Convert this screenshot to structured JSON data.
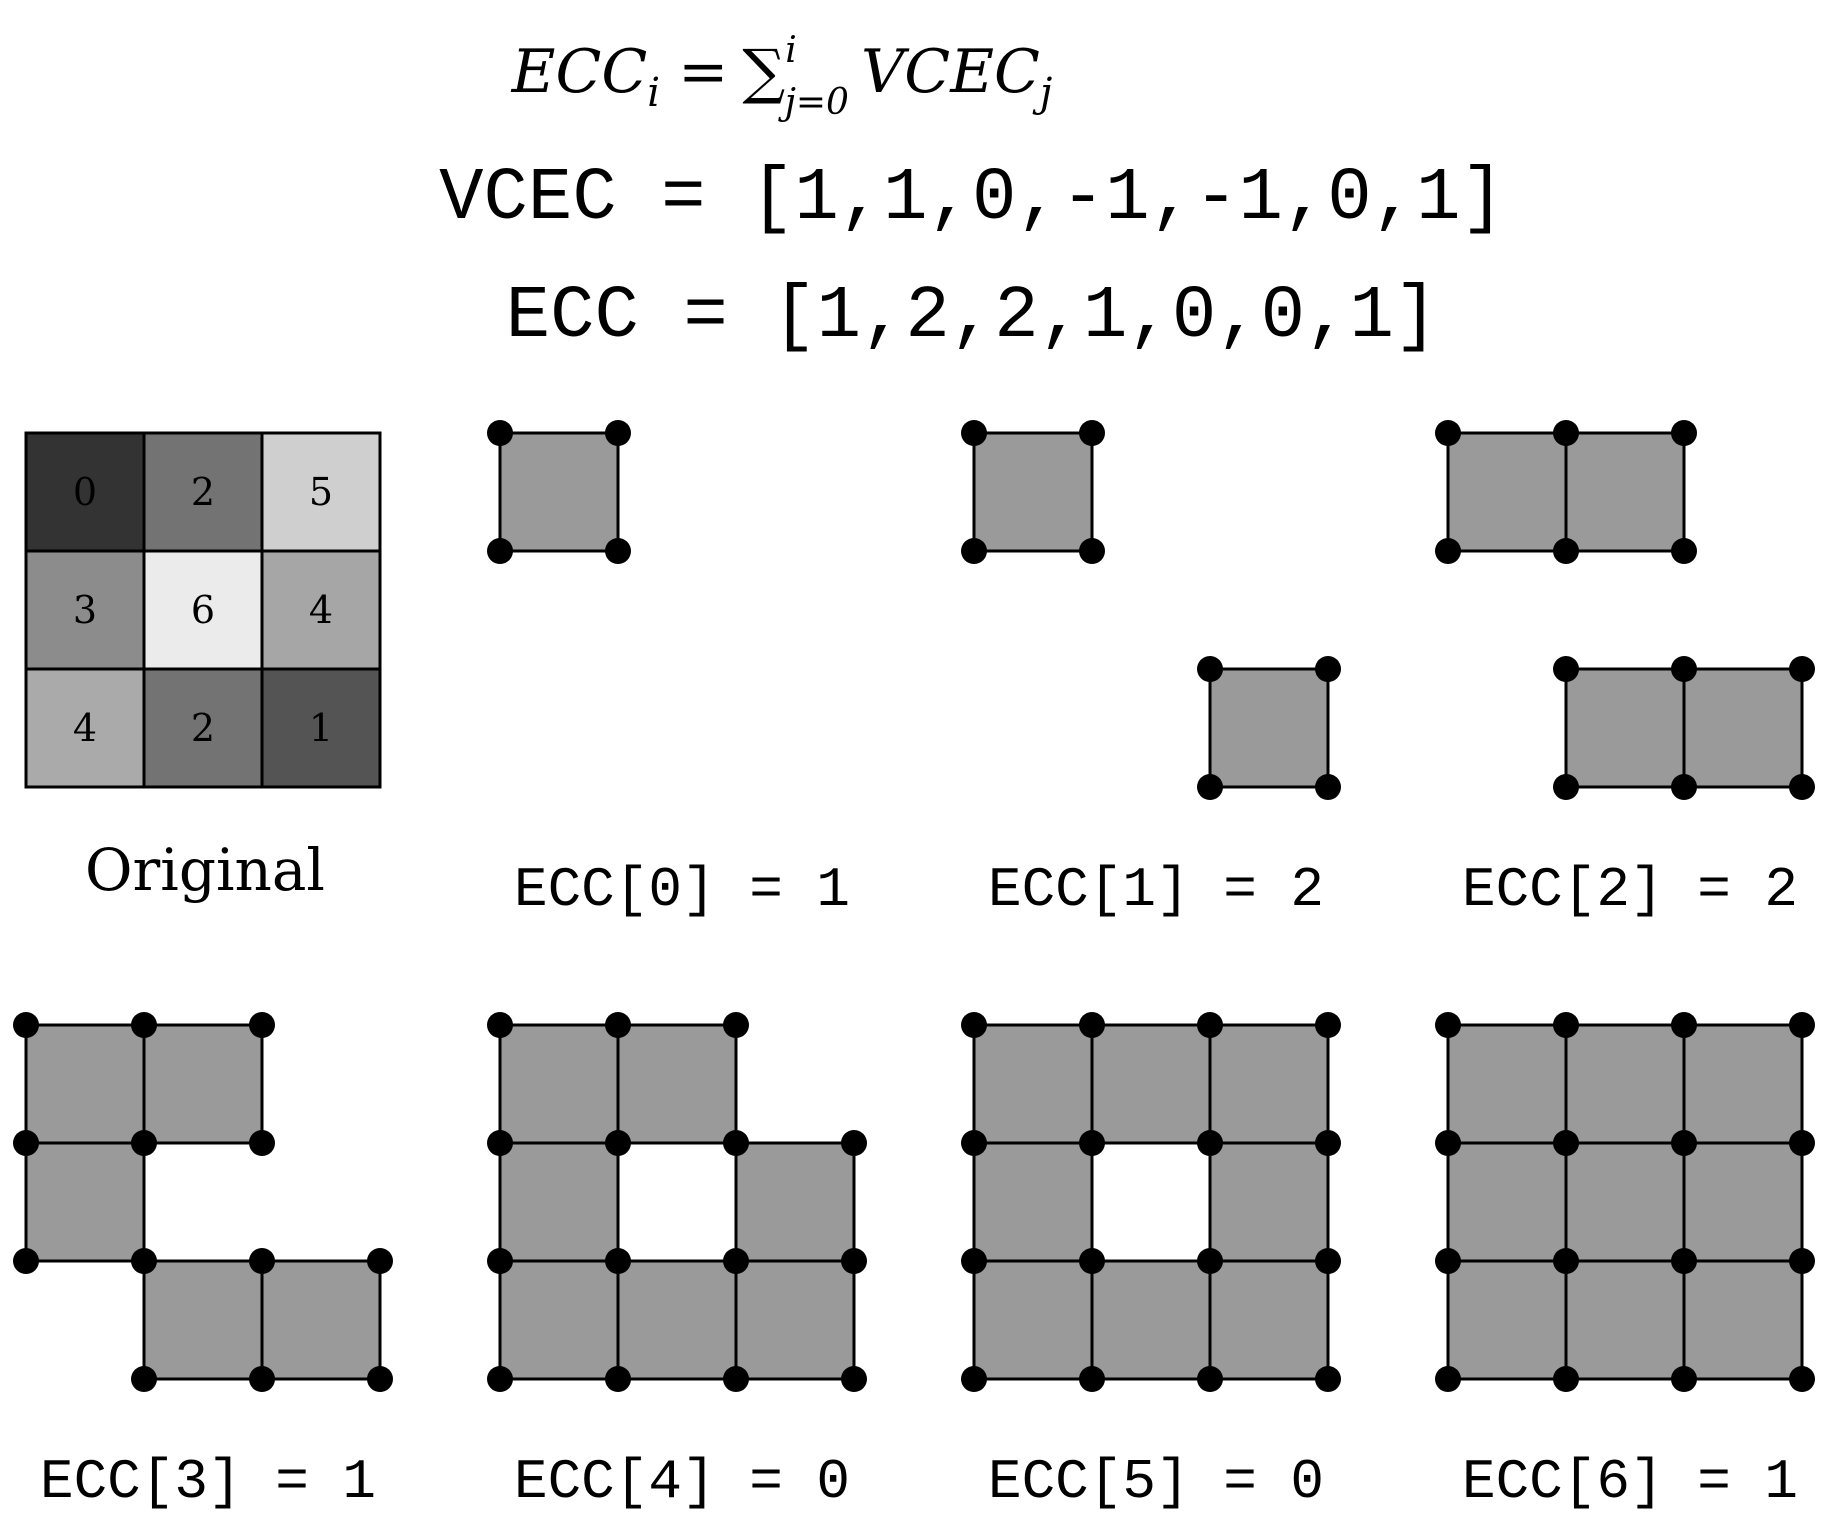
{
  "formula": {
    "lhs": "ECC",
    "lhs_sub": "i",
    "equals": "=",
    "sum_symbol": "∑",
    "sum_upper": "i",
    "sum_lower": "j=0",
    "rhs": "VCEC",
    "rhs_sub": "j"
  },
  "vcec_line": "VCEC = [1,1,0,-1,-1,0,1]",
  "ecc_line": "ECC = [1,2,2,1,0,0,1]",
  "colors": {
    "filled_cell": "#9a9a9a",
    "stroke": "#000000",
    "vertex": "#000000"
  },
  "original": {
    "label": "Original",
    "values": [
      [
        0,
        2,
        5
      ],
      [
        3,
        6,
        4
      ],
      [
        4,
        2,
        1
      ]
    ],
    "cell_colors": [
      [
        "#333333",
        "#737373",
        "#cfcfcf"
      ],
      [
        "#8c8c8c",
        "#ebebeb",
        "#a6a6a6"
      ],
      [
        "#aaaaaa",
        "#737373",
        "#545454"
      ]
    ]
  },
  "panels": [
    {
      "label": "ECC[0] = 1",
      "cells": [
        [
          0,
          0
        ]
      ]
    },
    {
      "label": "ECC[1] = 2",
      "cells": [
        [
          0,
          0
        ],
        [
          2,
          2
        ]
      ]
    },
    {
      "label": "ECC[2] = 2",
      "cells": [
        [
          0,
          0
        ],
        [
          0,
          1
        ],
        [
          2,
          1
        ],
        [
          2,
          2
        ]
      ]
    },
    {
      "label": "ECC[3] = 1",
      "cells": [
        [
          0,
          0
        ],
        [
          0,
          1
        ],
        [
          1,
          0
        ],
        [
          2,
          1
        ],
        [
          2,
          2
        ]
      ]
    },
    {
      "label": "ECC[4] = 0",
      "cells": [
        [
          0,
          0
        ],
        [
          0,
          1
        ],
        [
          1,
          0
        ],
        [
          1,
          2
        ],
        [
          2,
          0
        ],
        [
          2,
          1
        ],
        [
          2,
          2
        ]
      ]
    },
    {
      "label": "ECC[5] = 0",
      "cells": [
        [
          0,
          0
        ],
        [
          0,
          1
        ],
        [
          0,
          2
        ],
        [
          1,
          0
        ],
        [
          1,
          2
        ],
        [
          2,
          0
        ],
        [
          2,
          1
        ],
        [
          2,
          2
        ]
      ]
    },
    {
      "label": "ECC[6] = 1",
      "cells": [
        [
          0,
          0
        ],
        [
          0,
          1
        ],
        [
          0,
          2
        ],
        [
          1,
          0
        ],
        [
          1,
          1
        ],
        [
          1,
          2
        ],
        [
          2,
          0
        ],
        [
          2,
          1
        ],
        [
          2,
          2
        ]
      ]
    }
  ]
}
